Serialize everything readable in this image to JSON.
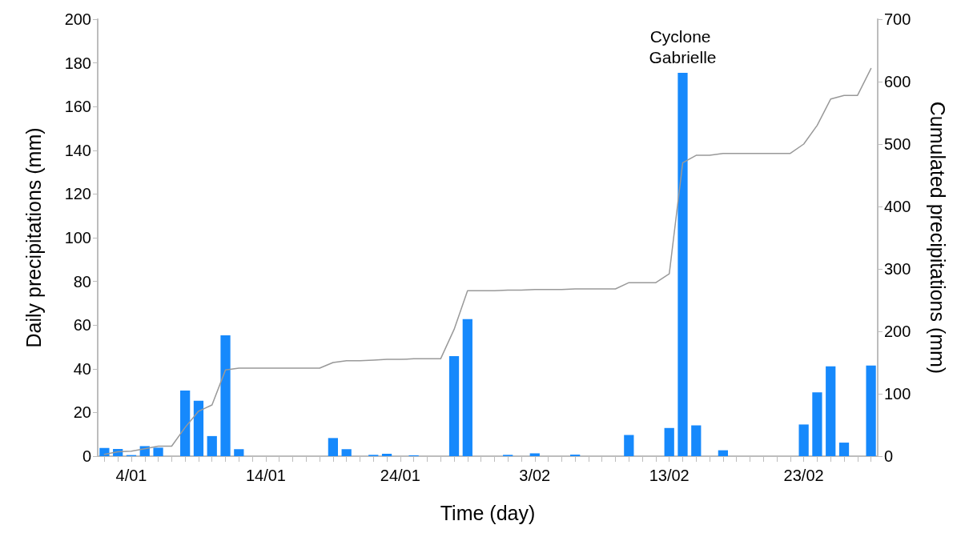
{
  "chart_data": {
    "type": "bar",
    "xlabel": "Time (day)",
    "ylabel": "Daily precipitations (mm)",
    "y2label": "Cumulated precipitations (mm)",
    "categories": [
      null,
      null,
      "4/01",
      null,
      null,
      null,
      null,
      null,
      null,
      null,
      null,
      null,
      "14/01",
      null,
      null,
      null,
      null,
      null,
      null,
      null,
      null,
      null,
      "24/01",
      null,
      null,
      null,
      null,
      null,
      null,
      null,
      null,
      null,
      "3/02",
      null,
      null,
      null,
      null,
      null,
      null,
      null,
      null,
      null,
      "13/02",
      null,
      null,
      null,
      null,
      null,
      null,
      null,
      null,
      null,
      "23/02",
      null,
      null,
      null,
      null,
      null
    ],
    "series": [
      {
        "color": "#1689fc",
        "values": [
          3.8,
          3.3,
          0.5,
          4.6,
          3.9,
          0,
          30,
          25.4,
          9.2,
          55.3,
          3.2,
          0,
          0,
          0,
          0,
          0,
          0,
          8.3,
          3.2,
          0,
          0.6,
          1.1,
          0,
          0.4,
          0,
          0,
          45.8,
          62.7,
          0,
          0,
          0.6,
          0,
          1.3,
          0,
          0,
          0.7,
          0,
          0,
          0,
          9.7,
          0,
          0,
          12.9,
          175.5,
          14.1,
          0,
          2.7,
          0,
          0,
          0,
          0,
          0,
          14.5,
          29.2,
          41.1,
          6.2,
          0,
          41.5
        ]
      },
      {
        "type": "line",
        "axis": "y2",
        "color": "#999999",
        "marker": "none",
        "values": [
          3,
          7,
          8,
          12,
          16,
          16,
          46,
          72,
          82,
          138,
          141,
          141,
          141,
          141,
          141,
          141,
          141,
          150,
          153,
          153,
          154,
          155,
          155,
          156,
          156,
          156,
          203,
          265,
          265,
          265,
          266,
          266,
          267,
          267,
          267,
          268,
          268,
          268,
          268,
          278,
          278,
          278,
          292,
          470,
          482,
          482,
          485,
          485,
          485,
          485,
          485,
          485,
          500,
          530,
          572,
          578,
          578,
          621
        ]
      }
    ],
    "ylim": [
      0,
      200
    ],
    "yticks": [
      0,
      20,
      40,
      60,
      80,
      100,
      120,
      140,
      160,
      180,
      200
    ],
    "y2lim": [
      0,
      700
    ],
    "y2ticks": [
      0,
      100,
      200,
      300,
      400,
      500,
      600,
      700
    ],
    "annotations": [
      {
        "text": "Cyclone Gabrielle",
        "y": 175.5
      }
    ],
    "grid": false
  }
}
